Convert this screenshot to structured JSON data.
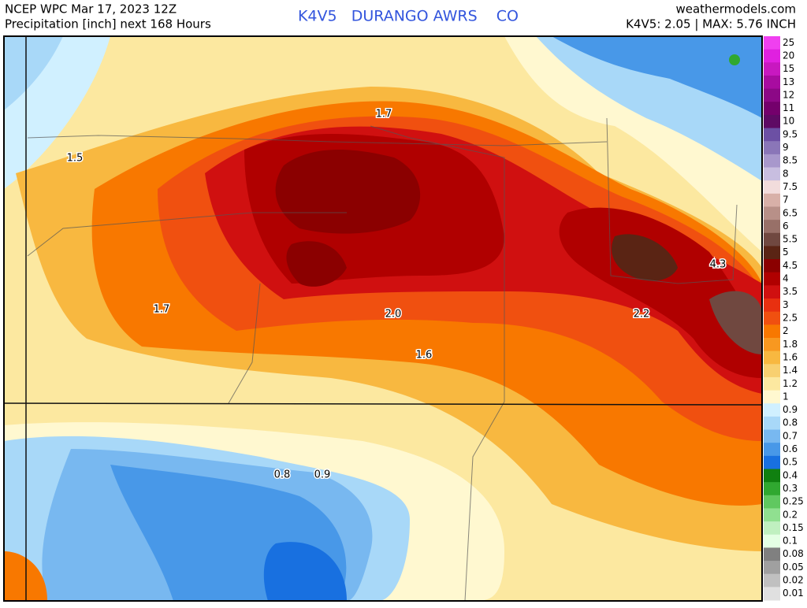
{
  "header": {
    "left_line1": "NCEP WPC Mar 17, 2023 12Z",
    "left_line2": "Precipitation [inch] next 168 Hours",
    "center": "K4V5   DURANGO AWRS    CO",
    "right_line1": "weathermodels.com",
    "right_line2": "K4V5: 2.05 | MAX: 5.76 INCH"
  },
  "map_labels": [
    "1.7",
    "1.5",
    "1.7",
    "2.0",
    "1.6",
    "2.2",
    "4.3",
    "0.8",
    "0.9"
  ],
  "colorbar": [
    {
      "label": "25",
      "color": "#f040f0"
    },
    {
      "label": "20",
      "color": "#e020e0"
    },
    {
      "label": "15",
      "color": "#c818c0"
    },
    {
      "label": "13",
      "color": "#a80ca0"
    },
    {
      "label": "12",
      "color": "#8c0886"
    },
    {
      "label": "11",
      "color": "#74006c"
    },
    {
      "label": "10",
      "color": "#5e0a64"
    },
    {
      "label": "9.5",
      "color": "#6c50a4"
    },
    {
      "label": "9",
      "color": "#8a76b8"
    },
    {
      "label": "8.5",
      "color": "#a898cc"
    },
    {
      "label": "8",
      "color": "#c8bee0"
    },
    {
      "label": "7.5",
      "color": "#f2dcdc"
    },
    {
      "label": "7",
      "color": "#d8b0a8"
    },
    {
      "label": "6.5",
      "color": "#b89088"
    },
    {
      "label": "6",
      "color": "#987068"
    },
    {
      "label": "5.5",
      "color": "#704840"
    },
    {
      "label": "5",
      "color": "#5a2414"
    },
    {
      "label": "4.5",
      "color": "#8b0000"
    },
    {
      "label": "4",
      "color": "#b00000"
    },
    {
      "label": "3.5",
      "color": "#d01010"
    },
    {
      "label": "3",
      "color": "#e83010"
    },
    {
      "label": "2.5",
      "color": "#f05010"
    },
    {
      "label": "2",
      "color": "#f87800"
    },
    {
      "label": "1.8",
      "color": "#f89820"
    },
    {
      "label": "1.6",
      "color": "#f8b840"
    },
    {
      "label": "1.4",
      "color": "#f8d070"
    },
    {
      "label": "1.2",
      "color": "#fce8a0"
    },
    {
      "label": "1",
      "color": "#fff8d0"
    },
    {
      "label": "0.9",
      "color": "#d0f0ff"
    },
    {
      "label": "0.8",
      "color": "#a8d8f8"
    },
    {
      "label": "0.7",
      "color": "#78b8f0"
    },
    {
      "label": "0.6",
      "color": "#4898e8"
    },
    {
      "label": "0.5",
      "color": "#1870e0"
    },
    {
      "label": "0.4",
      "color": "#108010"
    },
    {
      "label": "0.3",
      "color": "#30a830"
    },
    {
      "label": "0.25",
      "color": "#60c860"
    },
    {
      "label": "0.2",
      "color": "#90e090"
    },
    {
      "label": "0.15",
      "color": "#c0f0c0"
    },
    {
      "label": "0.1",
      "color": "#e4ffe4"
    },
    {
      "label": "0.08",
      "color": "#808080"
    },
    {
      "label": "0.05",
      "color": "#a0a0a0"
    },
    {
      "label": "0.02",
      "color": "#c0c0c0"
    },
    {
      "label": "0.01",
      "color": "#e0e0e0"
    }
  ]
}
